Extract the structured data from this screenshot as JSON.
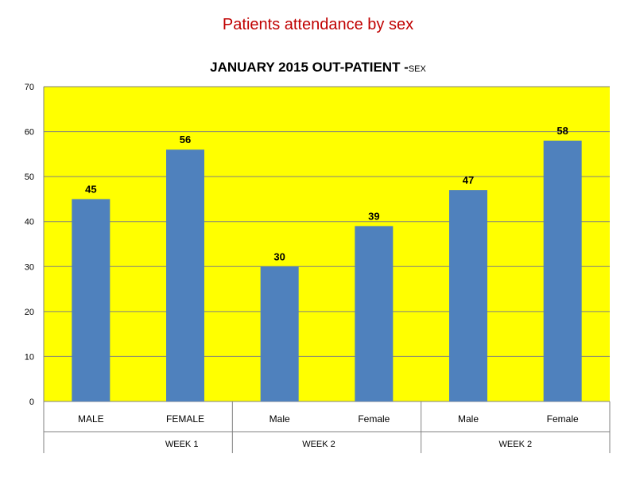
{
  "slide": {
    "title": "Patients attendance by sex"
  },
  "chart_data": {
    "type": "bar",
    "title": "JANUARY 2015 OUT-PATIENT -",
    "title_suffix": "SEX",
    "categories": [
      "MALE",
      "FEMALE",
      "Male",
      "Female",
      "Male",
      "Female"
    ],
    "groups": [
      {
        "label": "WEEK 1",
        "span": [
          0,
          1
        ]
      },
      {
        "label": "WEEK 2",
        "span": [
          2,
          3
        ]
      },
      {
        "label": "WEEK 2",
        "span": [
          4,
          5
        ]
      }
    ],
    "series": [
      {
        "values": [
          45,
          56,
          30,
          39,
          47,
          58
        ]
      }
    ],
    "ylim": [
      0,
      70
    ],
    "yticks": [
      0,
      10,
      20,
      30,
      40,
      50,
      60,
      70
    ],
    "grid": true,
    "legend": "none",
    "colors": {
      "bar": "#4f81bd",
      "plot_background": "#ffff00",
      "title_color": "#c00000"
    }
  }
}
